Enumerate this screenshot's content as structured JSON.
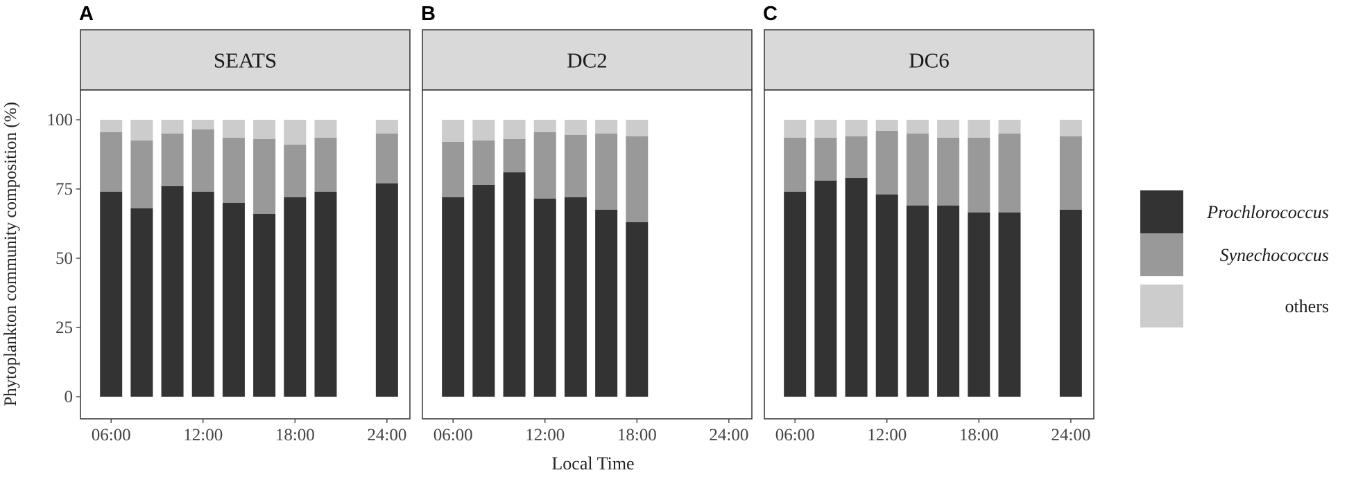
{
  "chart_data": {
    "type": "bar",
    "stacked": true,
    "ylabel": "Phytoplankton community composition (%)",
    "xlabel": "Local Time",
    "ylim": [
      0,
      100
    ],
    "yticks": [
      0,
      25,
      50,
      75,
      100
    ],
    "xticks": [
      "06:00",
      "12:00",
      "18:00",
      "24:00"
    ],
    "xtick_hours": [
      6,
      12,
      18,
      24
    ],
    "xlim_hours": [
      4,
      25.5
    ],
    "legend": {
      "position": "right",
      "entries": [
        {
          "label": "Prochlorococcus",
          "color": "#333333",
          "italic": true
        },
        {
          "label": "Synechococcus",
          "color": "#999999",
          "italic": true
        },
        {
          "label": "others",
          "color": "#cccccc",
          "italic": false
        }
      ]
    },
    "panels": [
      {
        "tag": "A",
        "title": "SEATS",
        "hours": [
          6,
          8,
          10,
          12,
          14,
          16,
          18,
          20,
          24
        ],
        "series": [
          {
            "name": "Prochlorococcus",
            "values": [
              74,
              68,
              76,
              74,
              70,
              66,
              72,
              74,
              77
            ]
          },
          {
            "name": "Synechococcus",
            "values": [
              21.5,
              24.5,
              19,
              22.5,
              23.5,
              27,
              19,
              19.5,
              18
            ]
          },
          {
            "name": "others",
            "values": [
              4.5,
              7.5,
              5,
              3.5,
              6.5,
              7,
              9,
              6.5,
              5
            ]
          }
        ]
      },
      {
        "tag": "B",
        "title": "DC2",
        "hours": [
          6,
          8,
          10,
          12,
          14,
          16,
          18
        ],
        "series": [
          {
            "name": "Prochlorococcus",
            "values": [
              72,
              76.5,
              81,
              71.5,
              72,
              67.5,
              63
            ]
          },
          {
            "name": "Synechococcus",
            "values": [
              20,
              16,
              12,
              24,
              22.5,
              27.5,
              31
            ]
          },
          {
            "name": "others",
            "values": [
              8,
              7.5,
              7,
              4.5,
              5.5,
              5,
              6
            ]
          }
        ]
      },
      {
        "tag": "C",
        "title": "DC6",
        "hours": [
          6,
          8,
          10,
          12,
          14,
          16,
          18,
          20,
          24
        ],
        "series": [
          {
            "name": "Prochlorococcus",
            "values": [
              74,
              78,
              79,
              73,
              69,
              69,
              66.5,
              66.5,
              67.5
            ]
          },
          {
            "name": "Synechococcus",
            "values": [
              19.5,
              15.5,
              15,
              23,
              26,
              24.5,
              27,
              28.5,
              26.5
            ]
          },
          {
            "name": "others",
            "values": [
              6.5,
              6.5,
              6,
              4,
              5,
              6.5,
              6.5,
              5,
              6
            ]
          }
        ]
      }
    ]
  }
}
